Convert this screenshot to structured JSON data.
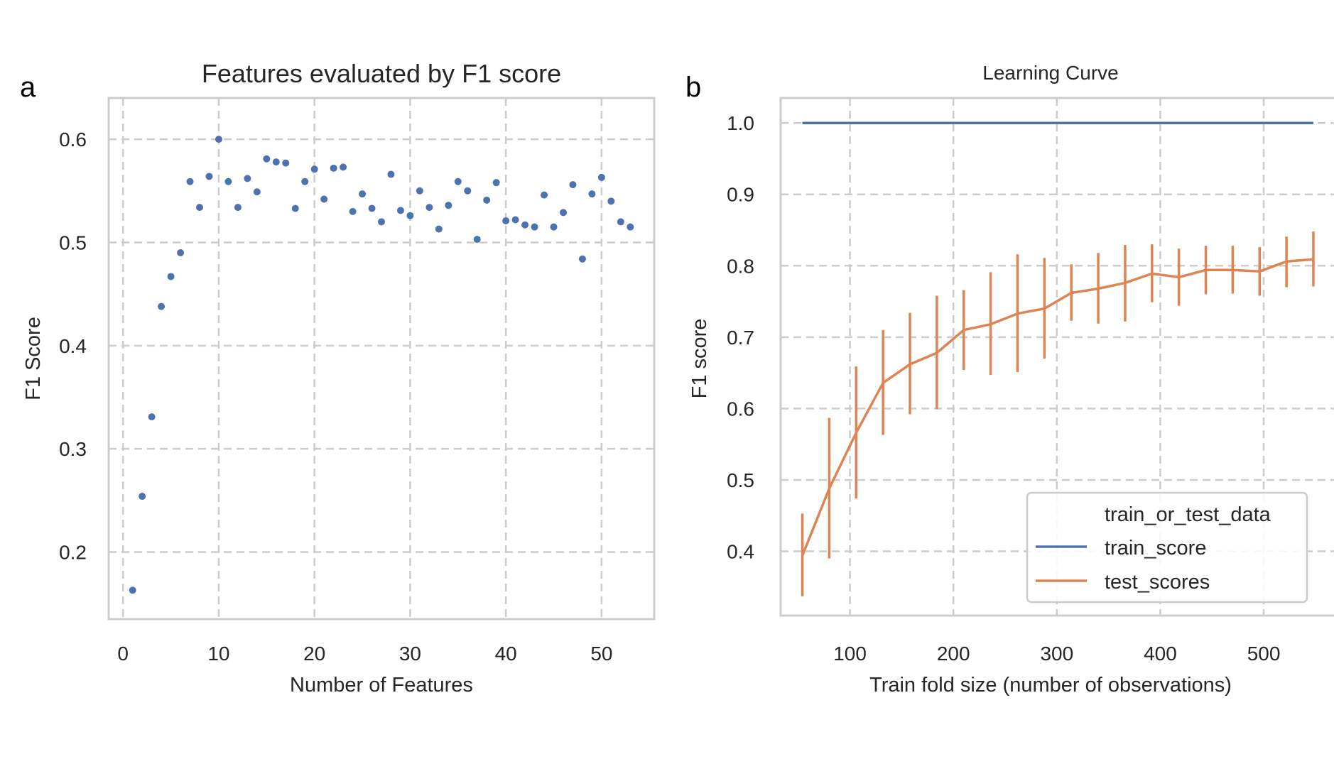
{
  "panels": {
    "a": {
      "letter": "a",
      "title": "Features evaluated by F1 score",
      "xlabel": "Number of Features",
      "ylabel": "F1 Score",
      "xticks": [
        0,
        10,
        20,
        30,
        40,
        50
      ],
      "yticks": [
        0.2,
        0.3,
        0.4,
        0.5,
        0.6
      ],
      "ytick_labels": [
        "0.2",
        "0.3",
        "0.4",
        "0.5",
        "0.6"
      ]
    },
    "b": {
      "letter": "b",
      "title": "Learning Curve",
      "xlabel": "Train fold size (number of observations)",
      "ylabel": "F1 score",
      "xticks": [
        100,
        200,
        300,
        400,
        500
      ],
      "yticks": [
        0.4,
        0.5,
        0.6,
        0.7,
        0.8,
        0.9,
        1.0
      ],
      "ytick_labels": [
        "0.4",
        "0.5",
        "0.6",
        "0.7",
        "0.8",
        "0.9",
        "1.0"
      ],
      "legend": {
        "title": "train_or_test_data",
        "placement": "lower-right",
        "items": [
          "train_score",
          "test_scores"
        ]
      }
    }
  },
  "colors": {
    "blue": "#4c72b0",
    "orange": "#dd8452",
    "grid": "#cccccc",
    "frame": "#cccccc"
  },
  "chart_data": [
    {
      "type": "scatter",
      "title": "Features evaluated by F1 score",
      "xlabel": "Number of Features",
      "ylabel": "F1 Score",
      "xlim": [
        -1.5,
        55.5
      ],
      "ylim": [
        0.135,
        0.64
      ],
      "grid": true,
      "series": [
        {
          "color": "#4c72b0",
          "x": [
            1,
            2,
            3,
            4,
            5,
            6,
            7,
            8,
            9,
            10,
            11,
            12,
            13,
            14,
            15,
            16,
            17,
            18,
            19,
            20,
            21,
            22,
            23,
            24,
            25,
            26,
            27,
            28,
            29,
            30,
            31,
            32,
            33,
            34,
            35,
            36,
            37,
            38,
            39,
            40,
            41,
            42,
            43,
            44,
            45,
            46,
            47,
            48,
            49,
            50,
            51,
            52,
            53
          ],
          "y": [
            0.163,
            0.254,
            0.331,
            0.438,
            0.467,
            0.49,
            0.559,
            0.534,
            0.564,
            0.6,
            0.559,
            0.534,
            0.562,
            0.549,
            0.581,
            0.578,
            0.577,
            0.533,
            0.559,
            0.571,
            0.542,
            0.572,
            0.573,
            0.53,
            0.547,
            0.533,
            0.52,
            0.566,
            0.531,
            0.526,
            0.55,
            0.534,
            0.513,
            0.536,
            0.559,
            0.55,
            0.503,
            0.541,
            0.558,
            0.521,
            0.522,
            0.517,
            0.515,
            0.546,
            0.515,
            0.529,
            0.556,
            0.484,
            0.547,
            0.563,
            0.54,
            0.52,
            0.515
          ]
        }
      ]
    },
    {
      "type": "line",
      "title": "Learning Curve",
      "xlabel": "Train fold size (number of observations)",
      "ylabel": "F1 score",
      "xlim": [
        33,
        570
      ],
      "ylim": [
        0.31,
        1.035
      ],
      "grid": true,
      "legend": "lower-right",
      "x": [
        54,
        80,
        106,
        132,
        158,
        184,
        210,
        236,
        262,
        288,
        314,
        340,
        366,
        392,
        418,
        444,
        470,
        496,
        522,
        548
      ],
      "series": [
        {
          "name": "train_score",
          "color": "#4c72b0",
          "values": [
            1.0,
            1.0,
            1.0,
            1.0,
            1.0,
            1.0,
            1.0,
            1.0,
            1.0,
            1.0,
            1.0,
            1.0,
            1.0,
            1.0,
            1.0,
            1.0,
            1.0,
            1.0,
            1.0,
            1.0
          ]
        },
        {
          "name": "test_scores",
          "color": "#dd8452",
          "values": [
            0.394,
            0.488,
            0.566,
            0.636,
            0.662,
            0.678,
            0.71,
            0.718,
            0.733,
            0.74,
            0.762,
            0.768,
            0.776,
            0.789,
            0.784,
            0.794,
            0.794,
            0.792,
            0.806,
            0.809
          ],
          "error_low": [
            0.337,
            0.39,
            0.474,
            0.563,
            0.592,
            0.599,
            0.654,
            0.647,
            0.651,
            0.67,
            0.723,
            0.719,
            0.722,
            0.749,
            0.744,
            0.76,
            0.761,
            0.758,
            0.77,
            0.771
          ],
          "error_high": [
            0.453,
            0.587,
            0.659,
            0.71,
            0.734,
            0.758,
            0.766,
            0.791,
            0.816,
            0.811,
            0.802,
            0.818,
            0.829,
            0.83,
            0.824,
            0.828,
            0.828,
            0.826,
            0.841,
            0.848
          ]
        }
      ]
    }
  ]
}
